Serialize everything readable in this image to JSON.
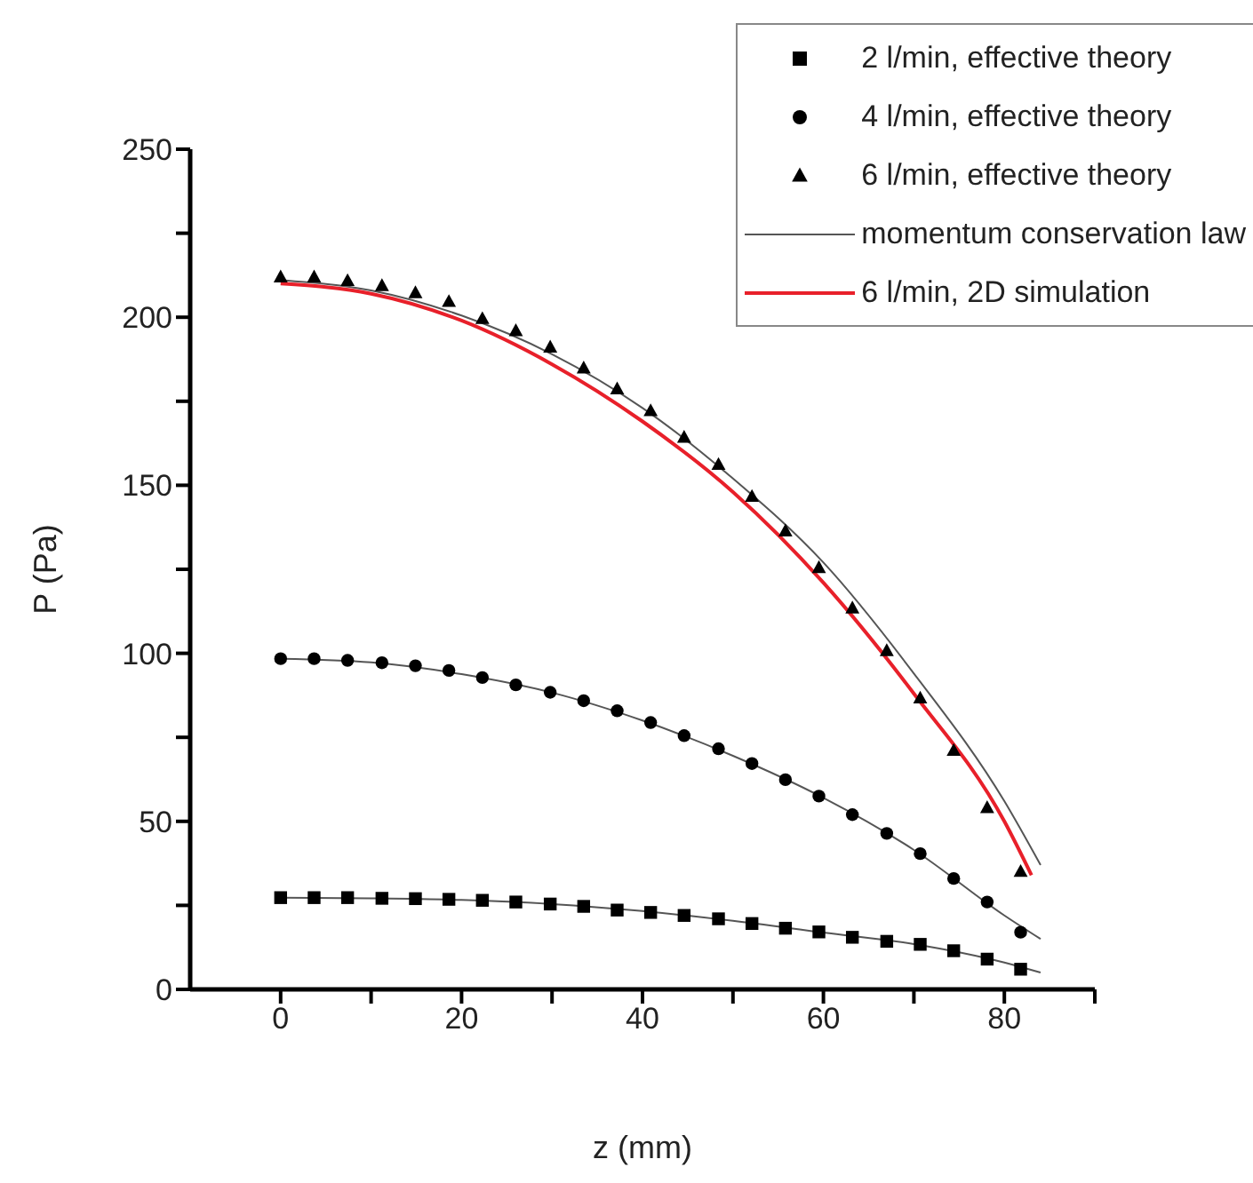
{
  "chart_data": {
    "type": "scatter",
    "xlabel": "z (mm)",
    "ylabel": "P (Pa)",
    "xlim": [
      -10,
      90
    ],
    "ylim": [
      0,
      250
    ],
    "xticks": [
      0,
      {
        "value": 10,
        "label": null
      },
      20,
      {
        "value": 30,
        "label": null
      },
      40,
      {
        "value": 50,
        "label": null
      },
      60,
      {
        "value": 70,
        "label": null
      },
      80,
      {
        "value": 90,
        "label": null
      }
    ],
    "yticks": [
      0,
      {
        "value": 25,
        "label": null
      },
      50,
      {
        "value": 75,
        "label": null
      },
      100,
      {
        "value": 125,
        "label": null
      },
      150,
      {
        "value": 175,
        "label": null
      },
      200,
      {
        "value": 225,
        "label": null
      },
      250
    ],
    "grid": false,
    "legend": "top right",
    "series": [
      {
        "name": "2 l/min, effective theory",
        "type": "scatter",
        "marker": "square",
        "color": "#000000",
        "x": [
          0,
          3.7,
          7.4,
          11.2,
          14.9,
          18.6,
          22.3,
          26.0,
          29.8,
          33.5,
          37.2,
          40.9,
          44.6,
          48.4,
          52.1,
          55.8,
          59.5,
          63.2,
          67.0,
          70.7,
          74.4,
          78.1,
          81.8
        ],
        "values": [
          27.3,
          27.3,
          27.3,
          27.1,
          27.0,
          26.8,
          26.5,
          26.0,
          25.4,
          24.7,
          23.6,
          22.9,
          22.0,
          21.0,
          19.6,
          18.2,
          17.1,
          15.5,
          14.3,
          13.4,
          11.5,
          9,
          6
        ]
      },
      {
        "name": "4 l/min, effective theory",
        "type": "scatter",
        "marker": "circle",
        "color": "#000000",
        "x": [
          0,
          3.7,
          7.4,
          11.2,
          14.9,
          18.6,
          22.3,
          26.0,
          29.8,
          33.5,
          37.2,
          40.9,
          44.6,
          48.4,
          52.1,
          55.8,
          59.5,
          63.2,
          67.0,
          70.7,
          74.4,
          78.1,
          81.8
        ],
        "values": [
          98.4,
          98.4,
          97.9,
          97.2,
          96.3,
          94.9,
          92.8,
          90.6,
          88.4,
          85.9,
          82.9,
          79.4,
          75.5,
          71.6,
          67.2,
          62.4,
          57.5,
          52.0,
          46.4,
          40.4,
          33,
          26,
          17
        ]
      },
      {
        "name": "6 l/min, effective theory",
        "type": "scatter",
        "marker": "triangle",
        "color": "#000000",
        "x": [
          0,
          3.7,
          7.4,
          11.2,
          14.9,
          18.6,
          22.3,
          26.0,
          29.8,
          33.5,
          37.2,
          40.9,
          44.6,
          48.4,
          52.1,
          55.8,
          59.5,
          63.2,
          67.0,
          70.7,
          74.4,
          78.1,
          81.8
        ],
        "values": [
          211.9,
          211.9,
          210.8,
          209.3,
          207.2,
          204.6,
          199.5,
          195.9,
          191,
          184.8,
          178.6,
          172.1,
          164.2,
          156.1,
          146.6,
          136.3,
          125.4,
          113.4,
          100.7,
          86.6,
          71,
          54,
          35
        ]
      },
      {
        "name": "momentum conservation law",
        "type": "line",
        "marker": "none",
        "color": "#555555",
        "x": [
          0,
          10,
          20,
          30,
          40,
          50,
          60,
          70,
          80,
          84
        ],
        "values": [
          211,
          208,
          200.5,
          189,
          173,
          152,
          127,
          94,
          56,
          37
        ]
      },
      {
        "type": "line",
        "marker": "none",
        "color": "#555555",
        "x": [
          0,
          10,
          20,
          30,
          40,
          50,
          60,
          70,
          80,
          84
        ],
        "values": [
          98.4,
          97.3,
          93.8,
          88.3,
          80,
          69.5,
          57,
          41.5,
          22,
          15
        ]
      },
      {
        "type": "line",
        "marker": "none",
        "color": "#555555",
        "x": [
          0,
          10,
          20,
          30,
          40,
          50,
          60,
          70,
          80,
          84
        ],
        "values": [
          27.3,
          27.1,
          26.6,
          25.4,
          23.3,
          20.4,
          16.9,
          13.5,
          8,
          5
        ]
      },
      {
        "name": "6 l/min, 2D simulation",
        "type": "line",
        "marker": "none",
        "color": "#e8202a",
        "x": [
          0,
          10,
          20,
          30,
          40,
          50,
          60,
          70,
          80,
          83
        ],
        "values": [
          210,
          207,
          199,
          186,
          169,
          148,
          121,
          88,
          50,
          34
        ]
      }
    ]
  }
}
